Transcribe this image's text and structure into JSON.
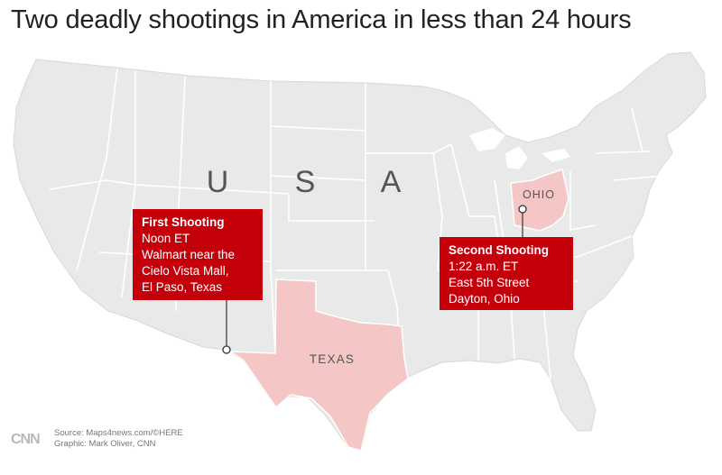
{
  "title": "Two deadly shootings in America in less than 24 hours",
  "map": {
    "country_letters": [
      "U",
      "S",
      "A"
    ],
    "state_labels": {
      "texas": "TEXAS",
      "ohio": "OHIO"
    },
    "colors": {
      "land": "#e9e9e9",
      "border": "#ffffff",
      "highlight": "#f5c6c6",
      "callout": "#c4000a"
    }
  },
  "shootings": [
    {
      "heading": "First Shooting",
      "lines": [
        "Noon ET",
        "Walmart near the",
        "Cielo Vista Mall,",
        "El Paso, Texas"
      ]
    },
    {
      "heading": "Second Shooting",
      "lines": [
        "1:22 a.m. ET",
        "East 5th Street",
        "Dayton, Ohio"
      ]
    }
  ],
  "credits": {
    "logo": "CNN",
    "source": "Source: Maps4news.com/©HERE",
    "graphic": "Graphic: Mark Oliver, CNN"
  }
}
